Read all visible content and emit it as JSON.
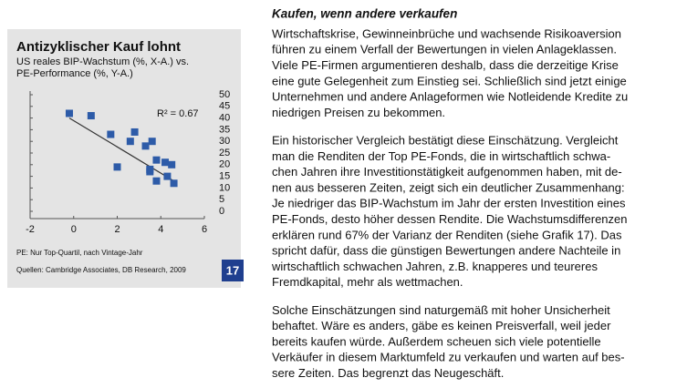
{
  "chart_data": {
    "type": "scatter",
    "title": "Antizyklischer Kauf lohnt",
    "subtitle": [
      "US reales BIP-Wachstum (%, X-A.) vs.",
      "PE-Performance (%, Y-A.)"
    ],
    "annotation": "R² = 0.67",
    "note": "PE: Nur Top-Quartil, nach Vintage-Jahr",
    "source": "Quellen: Cambridge Associates, DB Research, 2009",
    "figure_number": "17",
    "x": [
      -0.2,
      0.8,
      1.7,
      2.8,
      2.6,
      3.3,
      3.6,
      2.0,
      3.5,
      3.8,
      4.2,
      4.5,
      3.8,
      4.3,
      4.6,
      3.5
    ],
    "series": [
      {
        "color": "#2d5ba8",
        "values": [
          42,
          41,
          33,
          34,
          30,
          28,
          30,
          19,
          18,
          22,
          21,
          20,
          13,
          15,
          12,
          17
        ]
      }
    ],
    "trendline": {
      "x": [
        -0.2,
        4.6
      ],
      "y": [
        40,
        13
      ],
      "color": "#333333"
    },
    "xlim": [
      -2,
      6
    ],
    "xticks": [
      -2,
      0,
      2,
      4,
      6
    ],
    "ylim": [
      0,
      50
    ],
    "yticks": [
      0,
      5,
      10,
      15,
      20,
      25,
      30,
      35,
      40,
      45,
      50
    ],
    "grid": false
  },
  "article": {
    "heading": "Kaufen, wenn andere verkaufen",
    "paragraphs": [
      [
        "Wirtschaftskrise, Gewinneinbrüche und wachsende Risikoaversion",
        "führen zu einem Verfall der Bewertungen in vielen Anlageklassen.",
        "Viele PE-Firmen argumentieren deshalb, dass die derzeitige Krise",
        "eine gute Gelegenheit zum Einstieg sei. Schließlich sind jetzt einige",
        "Unternehmen und andere Anlageformen wie Notleidende Kredite zu",
        "niedrigen Preisen zu bekommen."
      ],
      [
        "Ein historischer Vergleich bestätigt diese Einschätzung. Vergleicht",
        "man die Renditen der Top PE-Fonds, die in wirtschaftlich schwa-",
        "chen Jahren ihre Investitionstätigkeit aufgenommen haben, mit de-",
        "nen aus besseren Zeiten, zeigt sich ein deutlicher Zusammenhang:",
        "Je niedriger das BIP-Wachstum im Jahr der ersten Investition eines",
        "PE-Fonds, desto höher dessen Rendite. Die Wachstumsdifferenzen",
        "erklären rund 67% der Varianz der Renditen (siehe Grafik 17). Das",
        "spricht dafür, dass die günstigen Bewertungen andere Nachteile in",
        "wirtschaftlich schwachen Jahren, z.B. knapperes und teureres",
        "Fremdkapital, mehr als wettmachen."
      ],
      [
        "Solche Einschätzungen sind naturgemäß mit hoher Unsicherheit",
        "behaftet. Wäre es anders, gäbe es keinen Preisverfall, weil jeder",
        "bereits kaufen würde.  Außerdem scheuen sich viele potentielle",
        "Verkäufer in diesem Marktumfeld zu verkaufen und warten auf bes-",
        "sere Zeiten. Das begrenzt das Neugeschäft."
      ]
    ]
  }
}
